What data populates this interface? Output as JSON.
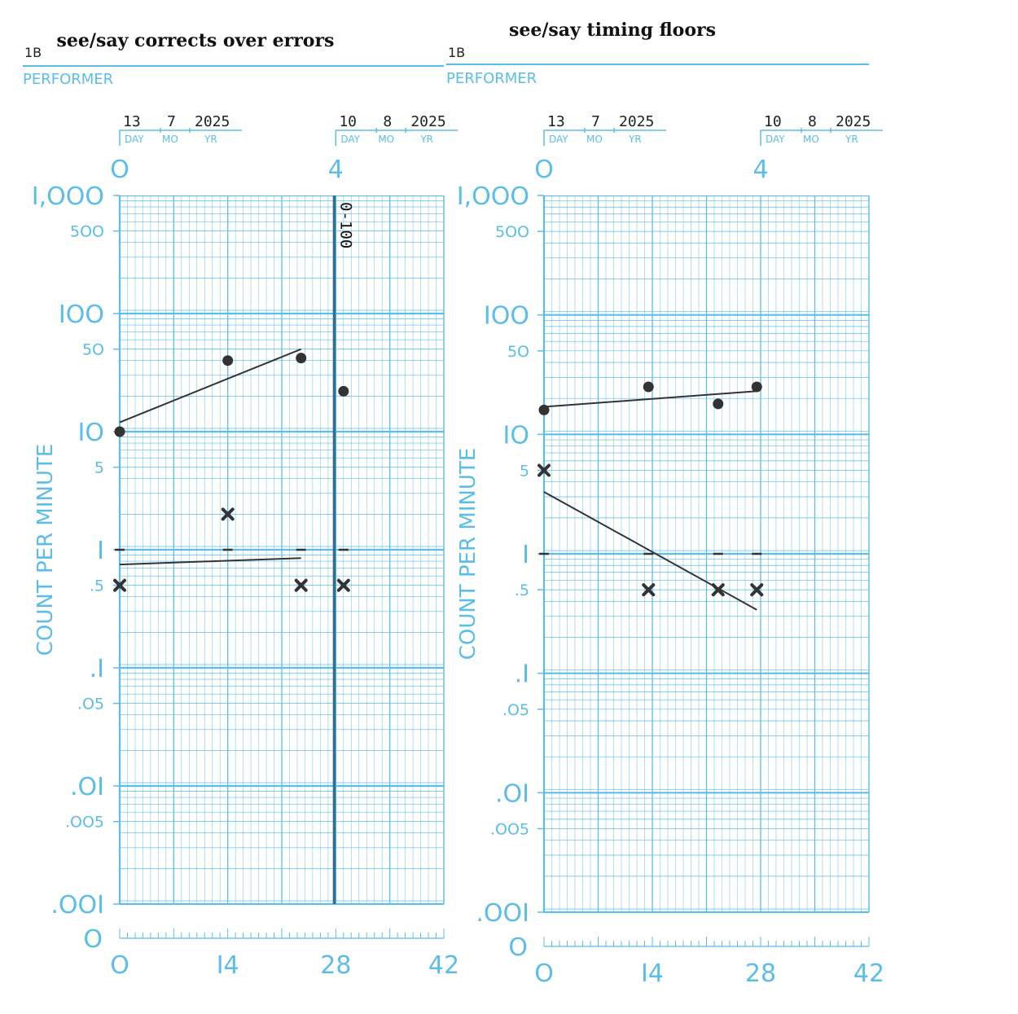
{
  "colors": {
    "grid": "#5bbde8",
    "data": "#333333",
    "phase_line": "#2f6f96"
  },
  "chart_data": [
    {
      "type": "scatter",
      "title": "see/say corrects over errors",
      "chart_id": "1B",
      "performer_label": "PERFORMER",
      "ylabel": "COUNT PER MINUTE",
      "y_scale": "log",
      "ylim": [
        0.001,
        1000
      ],
      "xlim": [
        0,
        42
      ],
      "x_tick_labels": [
        "O",
        "I4",
        "28",
        "42"
      ],
      "week_labels": [
        "O",
        "4"
      ],
      "y_tick_labels": [
        {
          "v": 1000,
          "t": "I,OOO",
          "major": true
        },
        {
          "v": 500,
          "t": "5OO",
          "major": false
        },
        {
          "v": 100,
          "t": "IOO",
          "major": true
        },
        {
          "v": 50,
          "t": "5O",
          "major": false
        },
        {
          "v": 10,
          "t": "IO",
          "major": true
        },
        {
          "v": 5,
          "t": "5",
          "major": false
        },
        {
          "v": 1,
          "t": "I",
          "major": true
        },
        {
          "v": 0.5,
          "t": ".5",
          "major": false
        },
        {
          "v": 0.1,
          "t": ".I",
          "major": true
        },
        {
          "v": 0.05,
          "t": ".O5",
          "major": false
        },
        {
          "v": 0.01,
          "t": ".OI",
          "major": true
        },
        {
          "v": 0.005,
          "t": ".OO5",
          "major": false
        },
        {
          "v": 0.001,
          "t": ".OOI",
          "major": true
        }
      ],
      "zero_label": "O",
      "date_left": {
        "day": "13",
        "mo": "7",
        "yr": "2025"
      },
      "date_right": {
        "day": "10",
        "mo": "8",
        "yr": "2025"
      },
      "date_caps": {
        "day": "DAY",
        "mo": "MO",
        "yr": "YR"
      },
      "phase_line": {
        "x": 27.8,
        "label": "0-100"
      },
      "series": [
        {
          "marker": "dot",
          "points": [
            [
              0,
              10
            ],
            [
              14,
              40
            ],
            [
              23.5,
              42
            ],
            [
              29,
              22
            ]
          ]
        },
        {
          "marker": "x",
          "points": [
            [
              0,
              0.5
            ],
            [
              14,
              2
            ],
            [
              23.5,
              0.5
            ],
            [
              29,
              0.5
            ]
          ]
        },
        {
          "marker": "floor",
          "points": [
            [
              0,
              1
            ],
            [
              14,
              1
            ],
            [
              23.5,
              1
            ],
            [
              29,
              1
            ]
          ]
        }
      ],
      "trend_lines": [
        {
          "from": [
            0,
            12
          ],
          "to": [
            23.5,
            50
          ]
        },
        {
          "from": [
            0,
            0.75
          ],
          "to": [
            23.5,
            0.85
          ]
        }
      ]
    },
    {
      "type": "scatter",
      "title": "see/say timing floors",
      "chart_id": "1B",
      "performer_label": "PERFORMER",
      "ylabel": "COUNT PER MINUTE",
      "y_scale": "log",
      "ylim": [
        0.001,
        1000
      ],
      "xlim": [
        0,
        42
      ],
      "x_tick_labels": [
        "O",
        "I4",
        "28",
        "42"
      ],
      "week_labels": [
        "O",
        "4"
      ],
      "y_tick_labels": [
        {
          "v": 1000,
          "t": "I,OOO",
          "major": true
        },
        {
          "v": 500,
          "t": "5OO",
          "major": false
        },
        {
          "v": 100,
          "t": "IOO",
          "major": true
        },
        {
          "v": 50,
          "t": "5O",
          "major": false
        },
        {
          "v": 10,
          "t": "IO",
          "major": true
        },
        {
          "v": 5,
          "t": "5",
          "major": false
        },
        {
          "v": 1,
          "t": "I",
          "major": true
        },
        {
          "v": 0.5,
          "t": ".5",
          "major": false
        },
        {
          "v": 0.1,
          "t": ".I",
          "major": true
        },
        {
          "v": 0.05,
          "t": ".O5",
          "major": false
        },
        {
          "v": 0.01,
          "t": ".OI",
          "major": true
        },
        {
          "v": 0.005,
          "t": ".OO5",
          "major": false
        },
        {
          "v": 0.001,
          "t": ".OOI",
          "major": true
        }
      ],
      "zero_label": "O",
      "date_left": {
        "day": "13",
        "mo": "7",
        "yr": "2025"
      },
      "date_right": {
        "day": "10",
        "mo": "8",
        "yr": "2025"
      },
      "date_caps": {
        "day": "DAY",
        "mo": "MO",
        "yr": "YR"
      },
      "phase_line": null,
      "series": [
        {
          "marker": "dot",
          "points": [
            [
              0,
              16
            ],
            [
              13.5,
              25
            ],
            [
              22.5,
              18
            ],
            [
              27.5,
              25
            ]
          ]
        },
        {
          "marker": "x",
          "points": [
            [
              0,
              5
            ],
            [
              13.5,
              0.5
            ],
            [
              22.5,
              0.5
            ],
            [
              27.5,
              0.5
            ]
          ]
        },
        {
          "marker": "floor",
          "points": [
            [
              0,
              1
            ],
            [
              13.5,
              1
            ],
            [
              22.5,
              1
            ],
            [
              27.5,
              1
            ]
          ]
        }
      ],
      "trend_lines": [
        {
          "from": [
            0,
            17
          ],
          "to": [
            27.5,
            23
          ]
        },
        {
          "from": [
            0,
            3.3
          ],
          "to": [
            27.5,
            0.34
          ]
        }
      ]
    }
  ]
}
